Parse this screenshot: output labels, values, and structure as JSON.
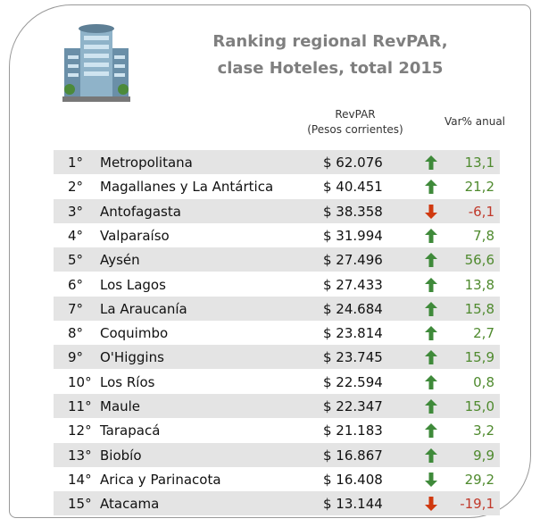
{
  "header": {
    "title_lines": [
      "Ranking regional RevPAR,",
      "clase Hoteles, total 2015"
    ]
  },
  "table": {
    "columns": [
      "RevPAR",
      "(Pesos corrientes)",
      "Var% anual"
    ],
    "rows": [
      [
        "1°",
        "Metropolitana",
        "$ 62.076",
        "13,1"
      ],
      [
        "2°",
        "Magallanes y La Antártica",
        "$ 40.451",
        "21,2"
      ],
      [
        "3°",
        "Antofagasta",
        "$ 38.358",
        "-6,1"
      ],
      [
        "4°",
        "Valparaíso",
        "$ 31.994",
        "7,8"
      ],
      [
        "5°",
        "Aysén",
        "$ 27.496",
        "56,6"
      ],
      [
        "6°",
        "Los Lagos",
        "$ 27.433",
        "13,8"
      ],
      [
        "7°",
        "La Araucanía",
        "$ 24.684",
        "15,8"
      ],
      [
        "8°",
        "Coquimbo",
        "$ 23.814",
        "2,7"
      ],
      [
        "9°",
        "O'Higgins",
        "$ 23.745",
        "15,9"
      ],
      [
        "10°",
        "Los Ríos",
        "$ 22.594",
        "0,8"
      ],
      [
        "11°",
        "Maule",
        "$ 22.347",
        "15,0"
      ],
      [
        "12°",
        "Tarapacá",
        "$ 21.183",
        "3,2"
      ],
      [
        "13°",
        "Biobío",
        "$ 16.867",
        "9,9"
      ],
      [
        "14°",
        "Arica y Parinacota",
        "$ 16.408",
        "29,2"
      ],
      [
        "15°",
        "Atacama",
        "$ 13.144",
        "-19,1"
      ]
    ]
  }
}
